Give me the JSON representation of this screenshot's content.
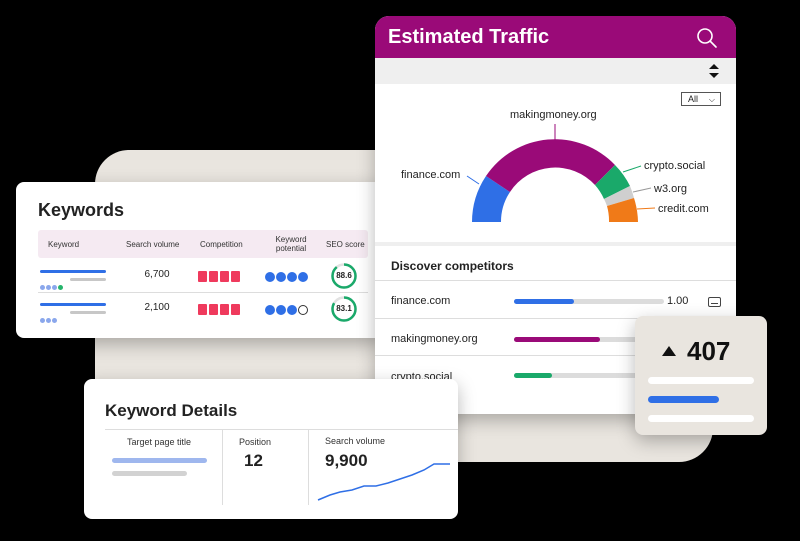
{
  "keywords": {
    "title": "Keywords",
    "columns": [
      "Keyword",
      "Search volume",
      "Competition",
      "Keyword potential",
      "SEO score"
    ],
    "rows": [
      {
        "search_volume": "6,700",
        "seo_score": "88.6"
      },
      {
        "search_volume": "2,100",
        "seo_score": "83.1"
      }
    ]
  },
  "traffic": {
    "title": "Estimated Traffic",
    "filter": "All",
    "gauge_labels": [
      "makingmoney.org",
      "finance.com",
      "crypto.social",
      "w3.org",
      "credit.com"
    ],
    "competitors_title": "Discover competitors",
    "competitors": [
      {
        "name": "finance.com",
        "value": "1.00"
      },
      {
        "name": "makingmoney.org"
      },
      {
        "name": "crypto.social"
      }
    ]
  },
  "badge": {
    "value": "407"
  },
  "details": {
    "title": "Keyword Details",
    "target_label": "Target page title",
    "position_label": "Position",
    "position_value": "12",
    "volume_label": "Search volume",
    "volume_value": "9,900"
  },
  "colors": {
    "brand": "#9a0a78",
    "blue": "#2f6fe6",
    "green": "#1aa96a",
    "orange": "#f07a18",
    "red": "#ef3a5d"
  }
}
